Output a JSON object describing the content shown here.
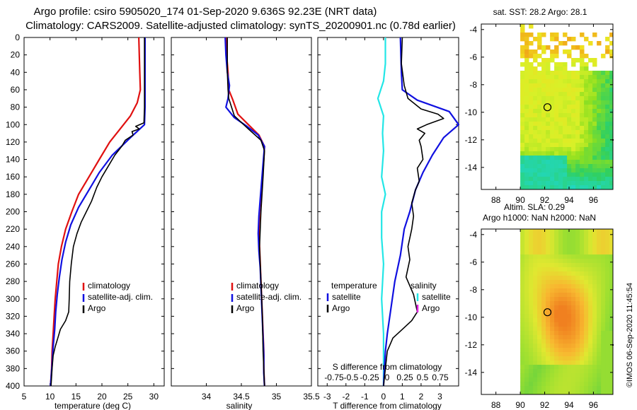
{
  "header": {
    "line1": "Argo profile: csiro 5905020_174 01-Sep-2020 9.636S 92.23E (NRT data)",
    "line2": "Climatology: CARS2009. Satellite-adjusted climatology: synTS_20200901.nc (0.78d earlier)"
  },
  "colors": {
    "climatology": "#e01010",
    "satellite": "#1010e0",
    "argo": "#000000",
    "temp_diff": "#22e6e6",
    "sal_diff_argo": "#e020e0"
  },
  "depth_ticks": [
    0,
    20,
    40,
    60,
    80,
    100,
    120,
    140,
    160,
    180,
    200,
    220,
    240,
    260,
    280,
    300,
    320,
    340,
    360,
    380,
    400
  ],
  "chart_data": [
    {
      "id": "temperature",
      "type": "line",
      "xlabel": "temperature (deg C)",
      "ylabel": "",
      "xlim": [
        5,
        32
      ],
      "ylim": [
        400,
        0
      ],
      "xticks": [
        5,
        10,
        15,
        20,
        25,
        30
      ],
      "legend": {
        "position": "middle-right",
        "entries": [
          "climatology",
          "satellite-adj. clim.",
          "Argo"
        ]
      },
      "series": [
        {
          "name": "climatology",
          "color": "#e01010",
          "points": [
            [
              27.1,
              0
            ],
            [
              27.2,
              20
            ],
            [
              27.3,
              40
            ],
            [
              27.4,
              60
            ],
            [
              26.8,
              75
            ],
            [
              25.5,
              90
            ],
            [
              23.5,
              105
            ],
            [
              21.5,
              120
            ],
            [
              19.5,
              140
            ],
            [
              17.5,
              160
            ],
            [
              15.5,
              180
            ],
            [
              14.2,
              200
            ],
            [
              13.0,
              220
            ],
            [
              12.2,
              240
            ],
            [
              11.6,
              260
            ],
            [
              11.3,
              280
            ],
            [
              11.0,
              300
            ],
            [
              10.8,
              320
            ],
            [
              10.6,
              340
            ],
            [
              10.4,
              360
            ],
            [
              10.3,
              380
            ],
            [
              10.1,
              400
            ]
          ]
        },
        {
          "name": "satellite-adj. clim.",
          "color": "#1010e0",
          "points": [
            [
              28.3,
              0
            ],
            [
              28.3,
              20
            ],
            [
              28.3,
              40
            ],
            [
              28.3,
              60
            ],
            [
              28.3,
              80
            ],
            [
              28.2,
              100
            ],
            [
              25.5,
              115
            ],
            [
              22.0,
              135
            ],
            [
              19.5,
              155
            ],
            [
              17.5,
              175
            ],
            [
              15.5,
              195
            ],
            [
              14.0,
              215
            ],
            [
              13.0,
              235
            ],
            [
              12.3,
              255
            ],
            [
              11.8,
              275
            ],
            [
              11.4,
              295
            ],
            [
              11.1,
              315
            ],
            [
              10.9,
              335
            ],
            [
              10.6,
              355
            ],
            [
              10.4,
              375
            ],
            [
              10.1,
              400
            ]
          ]
        },
        {
          "name": "Argo",
          "color": "#000000",
          "points": [
            [
              28.2,
              0
            ],
            [
              28.2,
              40
            ],
            [
              28.2,
              80
            ],
            [
              28.1,
              98
            ],
            [
              26.5,
              102
            ],
            [
              27.2,
              105
            ],
            [
              25.8,
              108
            ],
            [
              26.0,
              112
            ],
            [
              24.5,
              118
            ],
            [
              23.8,
              125
            ],
            [
              22.5,
              135
            ],
            [
              21.5,
              145
            ],
            [
              20.0,
              160
            ],
            [
              19.0,
              172
            ],
            [
              18.0,
              188
            ],
            [
              17.0,
              200
            ],
            [
              16.0,
              212
            ],
            [
              15.2,
              225
            ],
            [
              14.5,
              240
            ],
            [
              14.1,
              260
            ],
            [
              13.8,
              280
            ],
            [
              13.7,
              300
            ],
            [
              13.6,
              315
            ],
            [
              13.0,
              325
            ],
            [
              12.0,
              335
            ],
            [
              11.5,
              345
            ],
            [
              11.0,
              355
            ],
            [
              10.6,
              365
            ],
            [
              10.4,
              380
            ],
            [
              10.2,
              400
            ]
          ]
        }
      ]
    },
    {
      "id": "salinity",
      "type": "line",
      "xlabel": "salinity",
      "ylabel": "",
      "xlim": [
        33.5,
        35.5
      ],
      "ylim": [
        400,
        0
      ],
      "xticks": [
        34,
        34.5,
        35,
        35.5
      ],
      "legend": {
        "position": "middle-right",
        "entries": [
          "climatology",
          "satellite-adj. clim.",
          "Argo"
        ]
      },
      "series": [
        {
          "name": "climatology",
          "color": "#e01010",
          "points": [
            [
              34.28,
              0
            ],
            [
              34.29,
              20
            ],
            [
              34.31,
              40
            ],
            [
              34.32,
              60
            ],
            [
              34.38,
              72
            ],
            [
              34.45,
              88
            ],
            [
              34.6,
              100
            ],
            [
              34.75,
              112
            ],
            [
              34.83,
              125
            ],
            [
              34.82,
              140
            ],
            [
              34.8,
              160
            ],
            [
              34.78,
              180
            ],
            [
              34.76,
              200
            ],
            [
              34.75,
              220
            ],
            [
              34.76,
              240
            ],
            [
              34.77,
              260
            ],
            [
              34.78,
              280
            ],
            [
              34.79,
              300
            ],
            [
              34.8,
              320
            ],
            [
              34.81,
              340
            ],
            [
              34.82,
              360
            ],
            [
              34.82,
              380
            ],
            [
              34.83,
              400
            ]
          ]
        },
        {
          "name": "satellite-adj. clim.",
          "color": "#1010e0",
          "points": [
            [
              34.27,
              0
            ],
            [
              34.28,
              20
            ],
            [
              34.3,
              40
            ],
            [
              34.33,
              55
            ],
            [
              34.31,
              70
            ],
            [
              34.28,
              80
            ],
            [
              34.4,
              92
            ],
            [
              34.58,
              102
            ],
            [
              34.74,
              112
            ],
            [
              34.83,
              125
            ],
            [
              34.81,
              145
            ],
            [
              34.79,
              165
            ],
            [
              34.77,
              185
            ],
            [
              34.75,
              205
            ],
            [
              34.74,
              225
            ],
            [
              34.75,
              245
            ],
            [
              34.77,
              265
            ],
            [
              34.78,
              285
            ],
            [
              34.79,
              305
            ],
            [
              34.8,
              325
            ],
            [
              34.81,
              345
            ],
            [
              34.82,
              365
            ],
            [
              34.82,
              385
            ],
            [
              34.83,
              400
            ]
          ]
        },
        {
          "name": "Argo",
          "color": "#000000",
          "points": [
            [
              34.3,
              0
            ],
            [
              34.3,
              40
            ],
            [
              34.31,
              60
            ],
            [
              34.32,
              70
            ],
            [
              34.4,
              90
            ],
            [
              34.6,
              105
            ],
            [
              34.78,
              118
            ],
            [
              34.83,
              130
            ],
            [
              34.81,
              160
            ],
            [
              34.78,
              200
            ],
            [
              34.76,
              240
            ],
            [
              34.78,
              280
            ],
            [
              34.8,
              320
            ],
            [
              34.81,
              360
            ],
            [
              34.83,
              400
            ]
          ]
        }
      ]
    },
    {
      "id": "differences",
      "type": "line",
      "xlabel": "T difference from climatology",
      "top_label": "S difference from climatology",
      "ylabel": "",
      "xlim": [
        -3.5,
        4
      ],
      "ylim": [
        400,
        0
      ],
      "xticks": [
        -3,
        -2,
        -1,
        0,
        1,
        2,
        3
      ],
      "s_xticks": [
        "-0.75",
        "-0.5",
        "-0.25",
        "0",
        "0.25",
        "0.5",
        "0.75"
      ],
      "legend": {
        "position": "middle",
        "left_title": "temperature",
        "right_title": "salinity",
        "left_entries": [
          "satellite",
          "Argo"
        ],
        "right_entries": [
          "satellite",
          "Argo"
        ]
      },
      "series": [
        {
          "name": "T satellite",
          "color": "#22e6e6",
          "points": [
            [
              0.1,
              0
            ],
            [
              0.1,
              30
            ],
            [
              0.0,
              50
            ],
            [
              -0.3,
              70
            ],
            [
              0.0,
              90
            ],
            [
              -0.05,
              110
            ],
            [
              0.0,
              130
            ],
            [
              -0.1,
              160
            ],
            [
              0.1,
              180
            ],
            [
              -0.1,
              200
            ],
            [
              -0.1,
              230
            ],
            [
              0.0,
              260
            ],
            [
              -0.1,
              300
            ],
            [
              0.0,
              340
            ],
            [
              0.0,
              380
            ],
            [
              0.0,
              400
            ]
          ]
        },
        {
          "name": "S satellite",
          "color": "#1010e0",
          "points": [
            [
              0.9,
              0
            ],
            [
              0.95,
              40
            ],
            [
              1.0,
              60
            ],
            [
              1.8,
              72
            ],
            [
              3.5,
              85
            ],
            [
              4.0,
              100
            ],
            [
              3.2,
              115
            ],
            [
              2.6,
              135
            ],
            [
              2.1,
              155
            ],
            [
              1.7,
              175
            ],
            [
              1.4,
              200
            ],
            [
              1.1,
              220
            ],
            [
              0.9,
              250
            ],
            [
              0.6,
              280
            ],
            [
              0.4,
              310
            ],
            [
              0.2,
              340
            ],
            [
              0.1,
              360
            ],
            [
              0.05,
              380
            ],
            [
              0.0,
              400
            ]
          ]
        },
        {
          "name": "Argo",
          "color": "#000000",
          "points": [
            [
              1.0,
              0
            ],
            [
              0.95,
              30
            ],
            [
              1.1,
              55
            ],
            [
              1.3,
              70
            ],
            [
              2.0,
              82
            ],
            [
              2.9,
              88
            ],
            [
              3.2,
              93
            ],
            [
              2.3,
              100
            ],
            [
              1.8,
              105
            ],
            [
              2.2,
              110
            ],
            [
              1.9,
              118
            ],
            [
              2.0,
              125
            ],
            [
              2.1,
              140
            ],
            [
              1.8,
              150
            ],
            [
              1.9,
              165
            ],
            [
              1.7,
              175
            ],
            [
              1.5,
              190
            ],
            [
              1.6,
              205
            ],
            [
              1.5,
              220
            ],
            [
              1.3,
              240
            ],
            [
              1.4,
              255
            ],
            [
              1.2,
              275
            ],
            [
              1.6,
              295
            ],
            [
              1.8,
              315
            ],
            [
              1.5,
              325
            ],
            [
              1.0,
              335
            ],
            [
              0.5,
              345
            ],
            [
              0.2,
              360
            ],
            [
              0.1,
              380
            ],
            [
              0.0,
              400
            ]
          ]
        }
      ]
    },
    {
      "id": "sst_map",
      "type": "heatmap",
      "title": "sat. SST: 28.2 Argo: 28.1",
      "xticks": [
        88,
        90,
        92,
        94,
        96
      ],
      "yticks": [
        -4,
        -6,
        -8,
        -10,
        -12,
        -14
      ],
      "xlim": [
        86.8,
        97.6
      ],
      "ylim": [
        -15.6,
        -3.6
      ],
      "float_position": [
        92.23,
        -9.636
      ]
    },
    {
      "id": "sla_map",
      "type": "heatmap",
      "title_line1": "Altim. SLA: 0.29",
      "title_line2": "Argo h1000: NaN h2000: NaN",
      "xticks": [
        88,
        90,
        92,
        94,
        96
      ],
      "yticks": [
        -4,
        -6,
        -8,
        -10,
        -12,
        -14
      ],
      "xlim": [
        86.8,
        97.6
      ],
      "ylim": [
        -15.6,
        -3.6
      ],
      "float_position": [
        92.23,
        -9.636
      ]
    }
  ],
  "watermark": "©IMOS 06-Sep-2020 11:45:54"
}
